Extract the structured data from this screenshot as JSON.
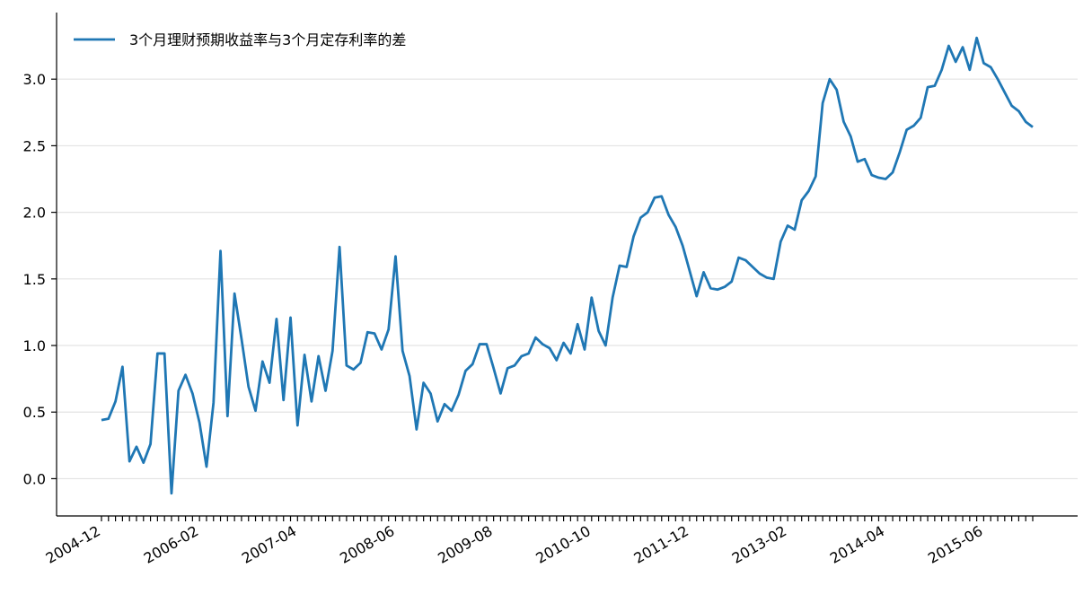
{
  "chart_data": {
    "type": "line",
    "categories": [
      "2004-12",
      null,
      null,
      null,
      null,
      null,
      null,
      null,
      null,
      null,
      null,
      null,
      null,
      null,
      "2006-02",
      null,
      null,
      null,
      null,
      null,
      null,
      null,
      null,
      null,
      null,
      null,
      null,
      null,
      "2007-04",
      null,
      null,
      null,
      null,
      null,
      null,
      null,
      null,
      null,
      null,
      null,
      null,
      null,
      "2008-06",
      null,
      null,
      null,
      null,
      null,
      null,
      null,
      null,
      null,
      null,
      null,
      null,
      null,
      "2009-08",
      null,
      null,
      null,
      null,
      null,
      null,
      null,
      null,
      null,
      null,
      null,
      null,
      null,
      "2010-10",
      null,
      null,
      null,
      null,
      null,
      null,
      null,
      null,
      null,
      null,
      null,
      null,
      null,
      "2011-12",
      null,
      null,
      null,
      null,
      null,
      null,
      null,
      null,
      null,
      null,
      null,
      null,
      null,
      "2013-02",
      null,
      null,
      null,
      null,
      null,
      null,
      null,
      null,
      null,
      null,
      null,
      null,
      null,
      "2014-04",
      null,
      null,
      null,
      null,
      null,
      null,
      null,
      null,
      null,
      null,
      null,
      null,
      null,
      "2015-06",
      null,
      null,
      null,
      null,
      null,
      null,
      null
    ],
    "series": [
      {
        "name": "3个月理财预期收益率与3个月定存利率的差",
        "color": "#1f77b4",
        "values": [
          0.44,
          0.45,
          0.58,
          0.84,
          0.13,
          0.24,
          0.12,
          0.26,
          0.94,
          0.94,
          -0.11,
          0.66,
          0.78,
          0.64,
          0.42,
          0.09,
          0.57,
          1.71,
          0.47,
          1.39,
          1.05,
          0.69,
          0.51,
          0.88,
          0.72,
          1.2,
          0.59,
          1.21,
          0.4,
          0.93,
          0.58,
          0.92,
          0.66,
          0.96,
          1.74,
          0.85,
          0.82,
          0.87,
          1.1,
          1.09,
          0.97,
          1.12,
          1.67,
          0.96,
          0.77,
          0.37,
          0.72,
          0.64,
          0.43,
          0.56,
          0.51,
          0.63,
          0.81,
          0.86,
          1.01,
          1.01,
          0.83,
          0.64,
          0.83,
          0.85,
          0.92,
          0.94,
          1.06,
          1.01,
          0.98,
          0.89,
          1.02,
          0.94,
          1.16,
          0.97,
          1.36,
          1.11,
          1.0,
          1.36,
          1.6,
          1.59,
          1.82,
          1.96,
          2.0,
          2.11,
          2.12,
          1.98,
          1.89,
          1.75,
          1.56,
          1.37,
          1.55,
          1.43,
          1.42,
          1.44,
          1.48,
          1.66,
          1.64,
          1.59,
          1.54,
          1.51,
          1.5,
          1.78,
          1.9,
          1.87,
          2.09,
          2.16,
          2.27,
          2.82,
          3.0,
          2.92,
          2.68,
          2.57,
          2.38,
          2.4,
          2.28,
          2.26,
          2.25,
          2.3,
          2.45,
          2.62,
          2.65,
          2.71,
          2.94,
          2.95,
          3.07,
          3.25,
          3.13,
          3.24,
          3.07,
          3.31,
          3.12,
          3.09,
          3.0,
          2.9,
          2.8,
          2.76,
          2.68,
          2.64
        ]
      }
    ],
    "ylim": [
      -0.28,
      3.5
    ],
    "yticks": [
      {
        "value": 0,
        "label": "0.0"
      },
      0.5,
      {
        "value": 1,
        "label": "1.0"
      },
      1.5,
      {
        "value": 2,
        "label": "2.0"
      },
      2.5,
      {
        "value": 3,
        "label": "3.0"
      }
    ],
    "grid": true,
    "legend": "upper left"
  }
}
